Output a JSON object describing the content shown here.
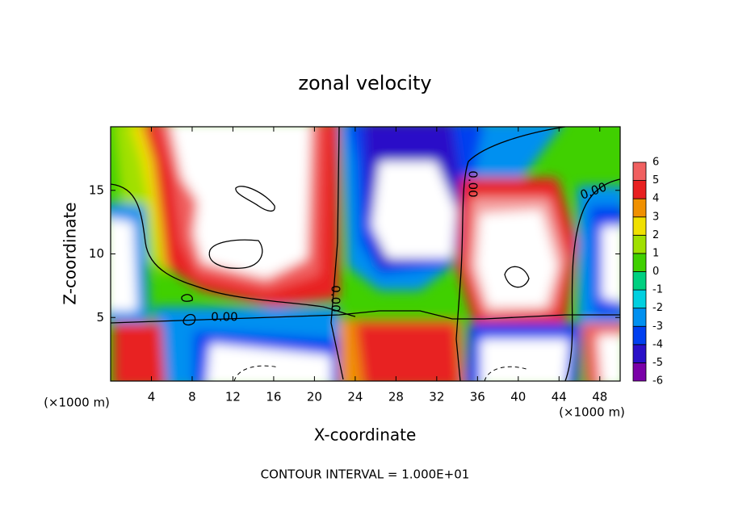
{
  "chart_data": {
    "type": "contour",
    "title": "zonal velocity",
    "x_label": "X-coordinate",
    "y_label": "Z-coordinate",
    "x_unit": "(×1000 m)",
    "y_unit": "(×1000 m)",
    "xlim": [
      0,
      50
    ],
    "xticks": [
      4,
      8,
      12,
      16,
      20,
      24,
      28,
      32,
      36,
      40,
      44,
      48
    ],
    "ylim": [
      0,
      20
    ],
    "yticks": [
      5,
      10,
      15
    ],
    "contour_labels": [
      "0.00",
      "0.00",
      "0.00",
      "0.00"
    ],
    "footer": "CONTOUR INTERVAL = 1.000E+01",
    "colorbar": {
      "levels": [
        -6,
        -5,
        -4,
        -3,
        -2,
        -1,
        0,
        1,
        2,
        3,
        4,
        5,
        6
      ],
      "colors": [
        "#7a00a8",
        "#2a10c8",
        "#0040f0",
        "#0090f0",
        "#00d0e0",
        "#00d080",
        "#40d000",
        "#a0e000",
        "#f0e000",
        "#f09000",
        "#e82020",
        "#f06060",
        "#f4a0a0"
      ]
    }
  }
}
